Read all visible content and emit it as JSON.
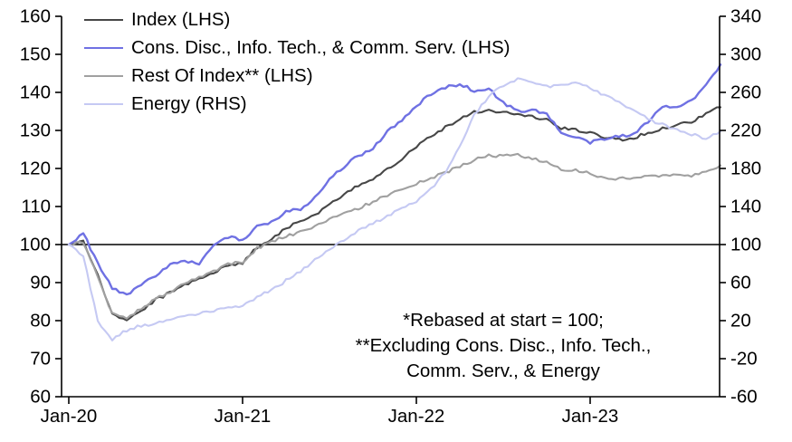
{
  "chart_data": {
    "type": "line",
    "title": "",
    "grid": false,
    "legend_position": "top-left",
    "x_axis": {
      "tick_labels": [
        "Jan-20",
        "Jan-21",
        "Jan-22",
        "Jan-23"
      ],
      "tick_month_index": [
        0,
        12,
        24,
        36
      ]
    },
    "left_axis": {
      "min": 60,
      "max": 160,
      "step": 10,
      "ticks": [
        160,
        150,
        140,
        130,
        120,
        110,
        100,
        90,
        80,
        70,
        60
      ]
    },
    "right_axis": {
      "min": -60,
      "max": 340,
      "step": 40,
      "ticks": [
        340,
        300,
        260,
        220,
        180,
        140,
        100,
        60,
        20,
        -20,
        -60
      ]
    },
    "baseline_value": 100,
    "months": [
      "Jan-20",
      "Feb-20",
      "Mar-20",
      "Apr-20",
      "May-20",
      "Jun-20",
      "Jul-20",
      "Aug-20",
      "Sep-20",
      "Oct-20",
      "Nov-20",
      "Dec-20",
      "Jan-21",
      "Feb-21",
      "Mar-21",
      "Apr-21",
      "May-21",
      "Jun-21",
      "Jul-21",
      "Aug-21",
      "Sep-21",
      "Oct-21",
      "Nov-21",
      "Dec-21",
      "Jan-22",
      "Feb-22",
      "Mar-22",
      "Apr-22",
      "May-22",
      "Jun-22",
      "Jul-22",
      "Aug-22",
      "Sep-22",
      "Oct-22",
      "Nov-22",
      "Dec-22",
      "Jan-23",
      "Feb-23",
      "Mar-23",
      "Apr-23",
      "May-23",
      "Jun-23",
      "Jul-23",
      "Aug-23",
      "Sep-23",
      "Oct-23"
    ],
    "series": [
      {
        "name": "Index (LHS)",
        "axis": "left",
        "color": "#474747",
        "values": [
          100,
          100.8,
          92,
          81.5,
          80.3,
          82.5,
          85.5,
          87.3,
          89.5,
          91.2,
          92.5,
          94.6,
          95.2,
          99.3,
          101.5,
          104.3,
          106.4,
          107.6,
          110.5,
          113,
          115.5,
          117.4,
          120,
          122.5,
          125.8,
          128.6,
          130.8,
          133,
          135,
          135.2,
          134.8,
          134.2,
          133.6,
          132.8,
          130.6,
          130.1,
          129.3,
          128.2,
          127.6,
          128,
          129.4,
          130.5,
          131.6,
          132.2,
          134.5,
          136.1
        ]
      },
      {
        "name": "Cons. Disc., Info. Tech., & Comm. Serv. (LHS)",
        "axis": "left",
        "color": "#6f71e3",
        "values": [
          100,
          103,
          95,
          88.5,
          86.8,
          89.5,
          92,
          94.5,
          95.8,
          95,
          99.5,
          102,
          101.2,
          104.8,
          105.8,
          108.8,
          109.3,
          112.5,
          117.3,
          120.5,
          123.4,
          125.2,
          129.8,
          132.5,
          136.5,
          139.5,
          141.3,
          142.2,
          140.4,
          141,
          137.2,
          135.1,
          135.4,
          134.4,
          129.3,
          128.1,
          126.9,
          127.6,
          128.6,
          128.9,
          132.3,
          136.3,
          136.4,
          137.9,
          141.8,
          147.3
        ]
      },
      {
        "name": "Rest Of Index** (LHS)",
        "axis": "left",
        "color": "#a0a0a0",
        "values": [
          100,
          100.5,
          91.5,
          81.8,
          80.8,
          83,
          85.8,
          87.6,
          89.8,
          91.5,
          92.8,
          94.8,
          95.5,
          99,
          100.8,
          102.3,
          103.2,
          104.6,
          106.6,
          108.1,
          109.6,
          111.2,
          112.9,
          114.5,
          116,
          117.4,
          118.8,
          120.7,
          122.3,
          123.5,
          123.2,
          123.6,
          122.6,
          121.7,
          119.6,
          119.7,
          118.7,
          117.4,
          117.3,
          117.6,
          117.9,
          118.3,
          118.6,
          118.1,
          119.2,
          120.8
        ]
      },
      {
        "name": "Energy (RHS)",
        "axis": "right",
        "color": "#c5c9f3",
        "values": [
          100,
          88,
          20,
          0,
          10,
          15,
          17,
          21,
          24,
          27,
          31,
          34,
          35,
          45,
          52,
          62,
          72,
          84,
          96,
          104,
          114,
          122,
          130,
          138,
          146,
          158,
          176,
          204,
          236,
          256,
          268,
          274,
          272,
          266,
          268,
          271,
          264,
          256,
          250,
          240,
          232,
          226,
          221,
          216,
          211,
          219
        ]
      }
    ],
    "annotation": {
      "lines": [
        "*Rebased at start = 100;",
        "**Excluding Cons. Disc., Info. Tech.,",
        "Comm. Serv., & Energy"
      ]
    }
  }
}
